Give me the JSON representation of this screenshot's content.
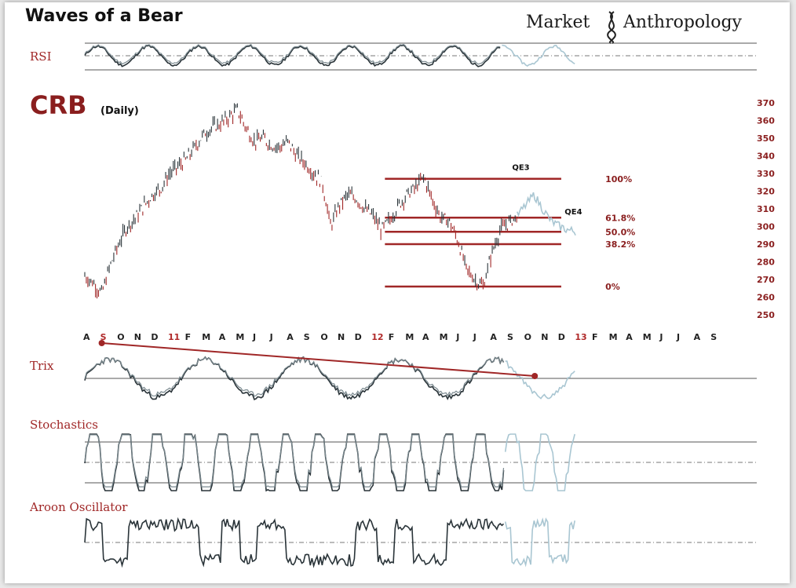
{
  "header": {
    "title": "Waves of a Bear",
    "brand_left": "Market",
    "brand_right": "Anthropology",
    "brand_color": "#1a1a1a"
  },
  "colors": {
    "accent": "#a02727",
    "price": "#2a3439",
    "price_down": "#a02727",
    "projection": "#a9c6d2"
  },
  "chart_data": {
    "type": "line",
    "title": "CRB",
    "subtitle": "(Daily)",
    "ylim": [
      250,
      370
    ],
    "yticks": [
      370,
      360,
      350,
      340,
      330,
      320,
      310,
      300,
      290,
      280,
      270,
      260,
      250
    ],
    "x_month_labels": [
      "A",
      "S",
      "O",
      "N",
      "D",
      "11",
      "F",
      "M",
      "A",
      "M",
      "J",
      "J",
      "A",
      "S",
      "O",
      "N",
      "D",
      "12",
      "F",
      "M",
      "A",
      "M",
      "J",
      "J",
      "A",
      "S",
      "O",
      "N",
      "D",
      "13",
      "F",
      "M",
      "A",
      "M",
      "J",
      "J",
      "A",
      "S"
    ],
    "x_red_labels": [
      "S",
      "11",
      "12",
      "13"
    ],
    "price_series": {
      "name": "",
      "months": [
        0,
        0.5,
        1,
        1.5,
        2,
        2.5,
        3,
        3.5,
        4,
        4.5,
        5,
        5.5,
        6,
        6.5,
        7,
        7.5,
        8,
        8.5,
        9,
        9.5,
        10,
        10.5,
        11,
        11.5,
        12,
        12.5,
        13,
        13.5,
        14,
        14.5,
        15,
        15.5,
        16,
        16.5,
        17,
        17.5,
        18,
        18.5,
        19,
        19.5,
        20,
        20.5,
        21,
        21.5,
        22,
        22.5,
        23,
        23.5,
        24,
        24.5,
        25,
        25.5
      ],
      "values": [
        272,
        268,
        262,
        278,
        290,
        300,
        305,
        312,
        318,
        322,
        330,
        334,
        338,
        345,
        352,
        356,
        358,
        362,
        366,
        356,
        348,
        350,
        346,
        345,
        348,
        340,
        336,
        330,
        325,
        300,
        312,
        318,
        316,
        310,
        306,
        298,
        304,
        312,
        318,
        322,
        328,
        315,
        305,
        303,
        292,
        276,
        270,
        266,
        285,
        298,
        302,
        306
      ]
    },
    "projection_series": {
      "name": "",
      "months": [
        25.5,
        26,
        26.5,
        27,
        27.5,
        28,
        28.5,
        29
      ],
      "values": [
        306,
        312,
        318,
        310,
        303,
        300,
        298,
        297
      ]
    },
    "fib_levels": [
      {
        "label": "100%",
        "value": 327
      },
      {
        "label": "61.8%",
        "value": 305
      },
      {
        "label": "50.0%",
        "value": 297
      },
      {
        "label": "38.2%",
        "value": 290
      },
      {
        "label": "0%",
        "value": 266
      }
    ],
    "annotations": [
      {
        "text": "QE3",
        "value": 332
      },
      {
        "text": "QE4",
        "value": 307
      }
    ],
    "indicators": [
      {
        "label": "RSI"
      },
      {
        "label": "Trix"
      },
      {
        "label": "Stochastics"
      },
      {
        "label": "Aroon Oscillator"
      }
    ],
    "trix_trendline": {
      "from_month": 1,
      "to_month": 27
    }
  }
}
